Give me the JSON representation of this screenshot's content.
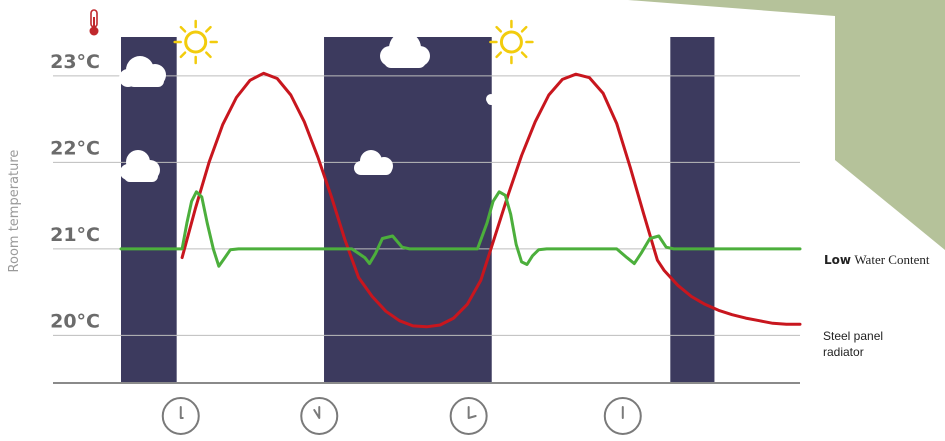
{
  "chart_data": {
    "type": "line",
    "ylabel": "Room temperature",
    "xlabel": "",
    "ylim": [
      19.45,
      23.45
    ],
    "y_ticks": [
      "23°C",
      "22°C",
      "21°C",
      "20°C"
    ],
    "y_tick_values": [
      23,
      22,
      21,
      20
    ],
    "x_range": [
      0,
      100
    ],
    "grid": true,
    "legend_placement": "right",
    "series": [
      {
        "name_bold": "Low",
        "name_rest": "Water Content",
        "color": "#4caf3c",
        "x": [
          0,
          9,
          9.7,
          10.4,
          11.1,
          11.9,
          12.7,
          13.6,
          14.4,
          15.3,
          16.1,
          17.3,
          18.2,
          34,
          35.9,
          36.6,
          37.5,
          38.5,
          40,
          41.4,
          42.5,
          52.5,
          53.9,
          54.8,
          55.7,
          56.6,
          57.4,
          58.2,
          59,
          59.8,
          60.6,
          61.5,
          62.7,
          63.8,
          73,
          74.5,
          75.6,
          76.6,
          77.9,
          79.2,
          80.3,
          81.4,
          83.5,
          100
        ],
        "y": [
          21.0,
          21.0,
          21.3,
          21.55,
          21.66,
          21.6,
          21.3,
          21.0,
          20.8,
          20.9,
          20.99,
          21.0,
          21.0,
          21.0,
          20.9,
          20.83,
          20.95,
          21.12,
          21.15,
          21.02,
          21.0,
          21.0,
          21.3,
          21.55,
          21.66,
          21.62,
          21.4,
          21.05,
          20.85,
          20.82,
          20.92,
          20.99,
          21.0,
          21.0,
          21.0,
          20.9,
          20.83,
          20.95,
          21.12,
          21.15,
          21.02,
          21.0,
          21.0,
          21.0
        ]
      },
      {
        "name": "Steel panel radiator",
        "color": "#c8161e",
        "x": [
          9,
          11,
          13,
          15,
          17,
          19,
          21,
          23,
          25,
          27,
          29,
          31,
          33,
          35,
          37,
          39,
          41,
          43,
          45,
          47,
          49,
          51,
          53,
          55,
          57,
          59,
          61,
          63,
          65,
          67,
          69,
          71,
          73,
          75,
          77,
          79,
          80,
          82,
          84,
          86,
          88,
          90,
          92,
          94,
          96,
          98,
          100
        ],
        "y": [
          20.9,
          21.48,
          22.01,
          22.44,
          22.75,
          22.95,
          23.03,
          22.97,
          22.78,
          22.47,
          22.06,
          21.6,
          21.1,
          20.67,
          20.45,
          20.28,
          20.17,
          20.11,
          20.1,
          20.12,
          20.2,
          20.36,
          20.64,
          21.13,
          21.62,
          22.08,
          22.47,
          22.78,
          22.96,
          23.02,
          22.98,
          22.8,
          22.45,
          21.94,
          21.4,
          20.87,
          20.75,
          20.58,
          20.45,
          20.36,
          20.29,
          20.24,
          20.2,
          20.17,
          20.14,
          20.13,
          20.13
        ]
      }
    ],
    "night_bands": [
      [
        0,
        8.2
      ],
      [
        29.9,
        54.6
      ],
      [
        80.9,
        87.4
      ]
    ],
    "sun_positions": [
      11,
      57.5
    ],
    "clock_positions": [
      8.8,
      29.2,
      51.2,
      73.9
    ],
    "colors": {
      "night": "#3c3a5e",
      "grid": "#bdbdbd",
      "axis": "#8a8a8a",
      "sun": "#f2cc0d",
      "clock": "#7a7a7a",
      "thermometer": "#c0282d",
      "decor": "#b5c29a"
    }
  }
}
